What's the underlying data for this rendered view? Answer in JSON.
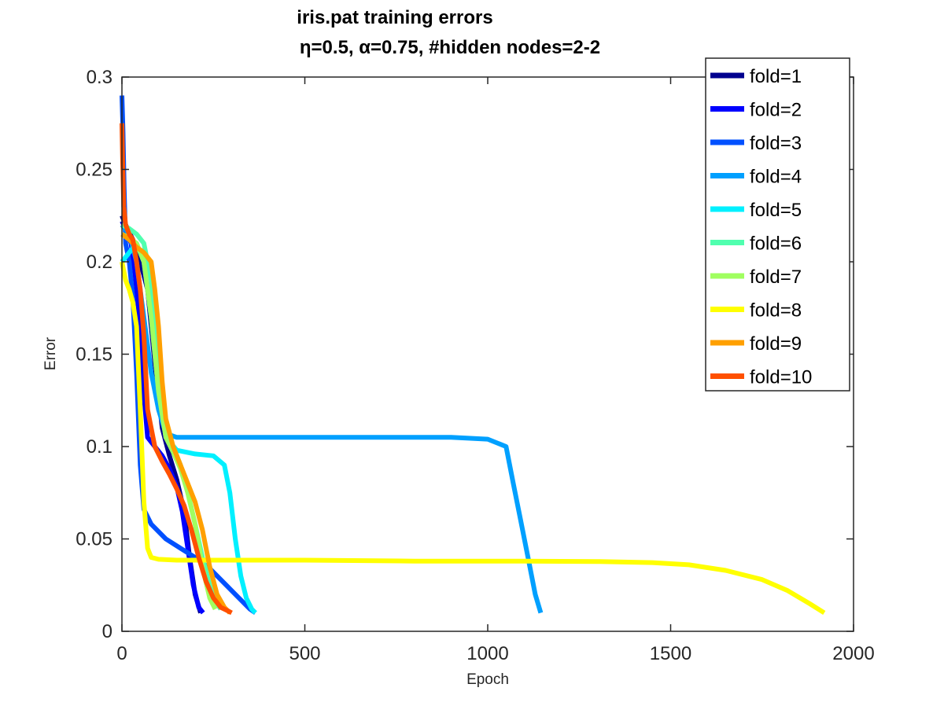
{
  "chart_data": {
    "type": "line",
    "title_line1": "iris.pat training errors",
    "title_line2": "η=0.5,    α=0.75, #hidden nodes=2-2",
    "xlabel": "Epoch",
    "ylabel": "Error",
    "xlim": [
      0,
      2000
    ],
    "ylim": [
      0,
      0.3
    ],
    "xticks": [
      0,
      500,
      1000,
      1500,
      2000
    ],
    "xtick_labels": [
      "0",
      "500",
      "1000",
      "1500",
      "2000"
    ],
    "yticks": [
      0,
      0.05,
      0.1,
      0.15,
      0.2,
      0.25,
      0.3
    ],
    "ytick_labels": [
      "0",
      "0.05",
      "0.1",
      "0.15",
      "0.2",
      "0.25",
      "0.3"
    ],
    "grid": false,
    "legend_position": "top-right",
    "series": [
      {
        "name": "fold=1",
        "color": "#00008f",
        "x": [
          0,
          10,
          30,
          50,
          70,
          90,
          110,
          130,
          150,
          170,
          185,
          200,
          215
        ],
        "y": [
          0.225,
          0.22,
          0.212,
          0.2,
          0.185,
          0.145,
          0.11,
          0.095,
          0.082,
          0.065,
          0.04,
          0.02,
          0.01
        ]
      },
      {
        "name": "fold=2",
        "color": "#0000ff",
        "x": [
          0,
          10,
          25,
          35,
          45,
          55,
          70,
          90,
          110,
          130,
          150,
          165,
          180,
          195,
          210,
          222
        ],
        "y": [
          0.222,
          0.218,
          0.21,
          0.195,
          0.175,
          0.14,
          0.105,
          0.1,
          0.095,
          0.088,
          0.078,
          0.065,
          0.045,
          0.025,
          0.013,
          0.01
        ]
      },
      {
        "name": "fold=3",
        "color": "#0050ff",
        "x": [
          0,
          3,
          6,
          10,
          20,
          30,
          40,
          50,
          60,
          80,
          120,
          160,
          200,
          240,
          280,
          320,
          350,
          365
        ],
        "y": [
          0.29,
          0.27,
          0.24,
          0.21,
          0.2,
          0.18,
          0.14,
          0.09,
          0.066,
          0.058,
          0.05,
          0.045,
          0.04,
          0.034,
          0.026,
          0.018,
          0.012,
          0.01
        ]
      },
      {
        "name": "fold=4",
        "color": "#00a0ff",
        "x": [
          0,
          20,
          40,
          60,
          80,
          100,
          120,
          150,
          200,
          300,
          400,
          500,
          600,
          700,
          800,
          900,
          1000,
          1050,
          1070,
          1090,
          1110,
          1130,
          1145
        ],
        "y": [
          0.22,
          0.215,
          0.2,
          0.17,
          0.14,
          0.12,
          0.107,
          0.105,
          0.105,
          0.105,
          0.105,
          0.105,
          0.105,
          0.105,
          0.105,
          0.105,
          0.104,
          0.1,
          0.08,
          0.06,
          0.04,
          0.02,
          0.01
        ]
      },
      {
        "name": "fold=5",
        "color": "#00f0ff",
        "x": [
          0,
          20,
          40,
          60,
          80,
          100,
          120,
          150,
          200,
          250,
          280,
          295,
          310,
          325,
          340,
          355,
          365
        ],
        "y": [
          0.2,
          0.205,
          0.21,
          0.2,
          0.17,
          0.13,
          0.105,
          0.098,
          0.096,
          0.095,
          0.09,
          0.075,
          0.05,
          0.03,
          0.018,
          0.012,
          0.01
        ]
      },
      {
        "name": "fold=6",
        "color": "#50ffaf",
        "x": [
          0,
          20,
          40,
          60,
          80,
          100,
          120,
          140,
          160,
          180,
          200,
          220,
          240,
          260,
          270
        ],
        "y": [
          0.22,
          0.218,
          0.215,
          0.21,
          0.19,
          0.14,
          0.11,
          0.1,
          0.09,
          0.075,
          0.058,
          0.04,
          0.025,
          0.015,
          0.012
        ]
      },
      {
        "name": "fold=7",
        "color": "#a0ff60",
        "x": [
          0,
          20,
          40,
          60,
          80,
          100,
          120,
          140,
          160,
          180,
          200,
          220,
          240,
          255
        ],
        "y": [
          0.215,
          0.213,
          0.21,
          0.2,
          0.17,
          0.13,
          0.105,
          0.097,
          0.088,
          0.075,
          0.058,
          0.035,
          0.018,
          0.012
        ]
      },
      {
        "name": "fold=8",
        "color": "#ffff00",
        "x": [
          0,
          10,
          20,
          30,
          40,
          50,
          60,
          70,
          80,
          100,
          150,
          300,
          500,
          800,
          1100,
          1300,
          1450,
          1550,
          1650,
          1750,
          1820,
          1880,
          1920
        ],
        "y": [
          0.2,
          0.19,
          0.185,
          0.178,
          0.165,
          0.12,
          0.07,
          0.045,
          0.04,
          0.039,
          0.0385,
          0.0385,
          0.0385,
          0.038,
          0.038,
          0.0378,
          0.0372,
          0.036,
          0.033,
          0.028,
          0.022,
          0.015,
          0.01
        ]
      },
      {
        "name": "fold=9",
        "color": "#ffa000",
        "x": [
          0,
          20,
          40,
          60,
          80,
          90,
          100,
          110,
          120,
          140,
          160,
          180,
          200,
          220,
          240,
          260,
          280,
          295
        ],
        "y": [
          0.215,
          0.212,
          0.208,
          0.205,
          0.2,
          0.185,
          0.165,
          0.135,
          0.115,
          0.1,
          0.09,
          0.08,
          0.07,
          0.055,
          0.035,
          0.02,
          0.013,
          0.01
        ]
      },
      {
        "name": "fold=10",
        "color": "#ff5000",
        "x": [
          0,
          2,
          5,
          10,
          20,
          30,
          40,
          50,
          60,
          70,
          90,
          110,
          130,
          150,
          170,
          190,
          210,
          230,
          250,
          270,
          290,
          300
        ],
        "y": [
          0.275,
          0.255,
          0.23,
          0.22,
          0.215,
          0.212,
          0.2,
          0.185,
          0.16,
          0.12,
          0.1,
          0.092,
          0.085,
          0.077,
          0.068,
          0.055,
          0.04,
          0.027,
          0.018,
          0.013,
          0.011,
          0.01
        ]
      }
    ]
  }
}
